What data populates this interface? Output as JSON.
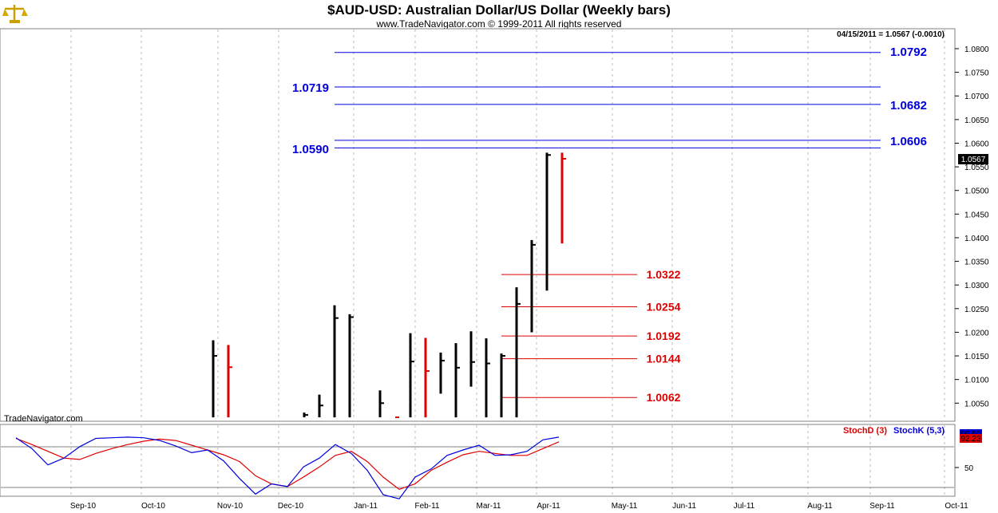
{
  "chart_data": [
    {
      "type": "bar",
      "subtype": "ohlc-weekly",
      "title": "$AUD-USD:  Australian Dollar/US Dollar  (Weekly bars)",
      "subtitle": "www.TradeNavigator.com © 1999-2011 All rights reserved",
      "watermark": "TradeNavigator.com",
      "readout": "04/15/2011 = 1.0567 (-0.0010)",
      "last_price_label": "1.0567",
      "last_price": 1.0567,
      "ylim": [
        1.002,
        1.084
      ],
      "yticks": [
        "1.0050",
        "1.0100",
        "1.0150",
        "1.0200",
        "1.0250",
        "1.0300",
        "1.0350",
        "1.0400",
        "1.0450",
        "1.0500",
        "1.0550",
        "1.0600",
        "1.0650",
        "1.0700",
        "1.0750",
        "1.0800"
      ],
      "xticks": [
        "Sep-10",
        "Oct-10",
        "Nov-10",
        "Dec-10",
        "Jan-11",
        "Feb-11",
        "Mar-11",
        "Apr-11",
        "May-11",
        "Jun-11",
        "Jul-11",
        "Aug-11",
        "Sep-11",
        "Oct-11"
      ],
      "grid": true,
      "colors": {
        "up": "#000000",
        "down": "#e00000",
        "fib_up": "#0000dd",
        "fib_down": "#dd0000"
      },
      "bars": [
        {
          "x": 267,
          "high": 1.0183,
          "low": 1.002,
          "close": 1.015,
          "color": "#000000"
        },
        {
          "x": 286,
          "high": 1.0173,
          "low": 1.002,
          "close": 1.0126,
          "color": "#e00000"
        },
        {
          "x": 381,
          "high": 1.003,
          "low": 1.002,
          "close": 1.0025,
          "color": "#000000"
        },
        {
          "x": 400,
          "high": 1.0068,
          "low": 1.002,
          "close": 1.0045,
          "color": "#000000"
        },
        {
          "x": 419,
          "high": 1.0257,
          "low": 1.002,
          "close": 1.023,
          "color": "#000000"
        },
        {
          "x": 438,
          "high": 1.0238,
          "low": 1.002,
          "close": 1.0232,
          "color": "#000000"
        },
        {
          "x": 476,
          "high": 1.0077,
          "low": 1.002,
          "close": 1.005,
          "color": "#000000"
        },
        {
          "x": 495,
          "high": 1.002,
          "low": 1.002,
          "close": 1.002,
          "color": "#e00000"
        },
        {
          "x": 514,
          "high": 1.0198,
          "low": 1.002,
          "close": 1.0138,
          "color": "#000000"
        },
        {
          "x": 533,
          "high": 1.0188,
          "low": 1.002,
          "close": 1.0118,
          "color": "#e00000"
        },
        {
          "x": 552,
          "high": 1.0157,
          "low": 1.007,
          "close": 1.014,
          "color": "#000000"
        },
        {
          "x": 571,
          "high": 1.0177,
          "low": 1.002,
          "close": 1.0125,
          "color": "#000000"
        },
        {
          "x": 590,
          "high": 1.0202,
          "low": 1.0085,
          "close": 1.0137,
          "color": "#000000"
        },
        {
          "x": 609,
          "high": 1.0187,
          "low": 1.002,
          "close": 1.0134,
          "color": "#000000"
        },
        {
          "x": 628,
          "high": 1.0155,
          "low": 1.002,
          "close": 1.015,
          "color": "#000000"
        },
        {
          "x": 647,
          "high": 1.0295,
          "low": 1.002,
          "close": 1.026,
          "color": "#000000"
        },
        {
          "x": 666,
          "high": 1.0395,
          "low": 1.02,
          "close": 1.0385,
          "color": "#000000"
        },
        {
          "x": 685,
          "high": 1.058,
          "low": 1.0288,
          "close": 1.0575,
          "color": "#000000"
        },
        {
          "x": 704,
          "high": 1.058,
          "low": 1.0388,
          "close": 1.0567,
          "color": "#e00000"
        }
      ],
      "levels_up": [
        {
          "value": 1.0792,
          "label": "1.0792"
        },
        {
          "value": 1.0719,
          "label": "1.0719"
        },
        {
          "value": 1.0682,
          "label": "1.0682"
        },
        {
          "value": 1.0606,
          "label": "1.0606"
        },
        {
          "value": 1.059,
          "label": "1.0590"
        }
      ],
      "levels_down": [
        {
          "value": 1.0322,
          "label": "1.0322"
        },
        {
          "value": 1.0254,
          "label": "1.0254"
        },
        {
          "value": 1.0192,
          "label": "1.0192"
        },
        {
          "value": 1.0144,
          "label": "1.0144"
        },
        {
          "value": 1.0062,
          "label": "1.0062"
        }
      ]
    },
    {
      "type": "line",
      "subtype": "stochastic",
      "ylim": [
        0,
        100
      ],
      "yticks": [
        "50"
      ],
      "series": [
        {
          "name": "StochD (3)",
          "color": "#e00000",
          "last_label": "92.23",
          "x": [
            20,
            40,
            60,
            80,
            100,
            120,
            140,
            160,
            180,
            200,
            220,
            240,
            260,
            280,
            300,
            320,
            340,
            360,
            380,
            400,
            420,
            440,
            460,
            480,
            500,
            520,
            540,
            560,
            580,
            600,
            620,
            640,
            660,
            680,
            700
          ],
          "values": [
            97,
            88,
            78,
            68,
            66,
            75,
            82,
            88,
            93,
            96,
            94,
            87,
            80,
            73,
            63,
            42,
            30,
            26,
            40,
            55,
            72,
            78,
            63,
            40,
            22,
            30,
            50,
            62,
            73,
            78,
            75,
            72,
            72,
            82,
            92
          ]
        },
        {
          "name": "StochK (5,3)",
          "color": "#0000dd",
          "last_label": "99.50",
          "x": [
            20,
            40,
            60,
            80,
            100,
            120,
            140,
            160,
            180,
            200,
            220,
            240,
            260,
            280,
            300,
            320,
            340,
            360,
            380,
            400,
            420,
            440,
            460,
            480,
            500,
            520,
            540,
            560,
            580,
            600,
            620,
            640,
            660,
            680,
            700
          ],
          "values": [
            98,
            82,
            58,
            68,
            85,
            97,
            98,
            99,
            98,
            94,
            86,
            76,
            80,
            64,
            38,
            15,
            30,
            26,
            55,
            68,
            88,
            75,
            50,
            14,
            8,
            40,
            52,
            72,
            80,
            87,
            72,
            73,
            78,
            95,
            99
          ]
        }
      ]
    }
  ]
}
